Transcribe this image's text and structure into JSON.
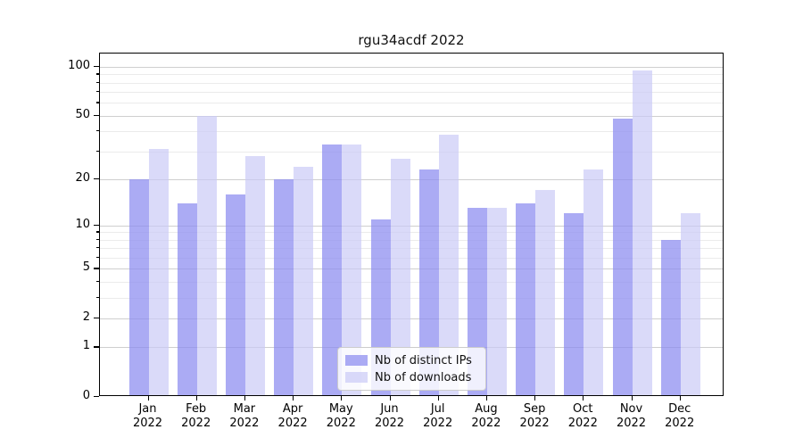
{
  "chart_data": {
    "type": "bar",
    "title": "rgu34acdf 2022",
    "categories": [
      "Jan",
      "Feb",
      "Mar",
      "Apr",
      "May",
      "Jun",
      "Jul",
      "Aug",
      "Sep",
      "Oct",
      "Nov",
      "Dec"
    ],
    "year_label": "2022",
    "series": [
      {
        "name": "Nb of distinct IPs",
        "color": "rgba(138,138,240,0.72)",
        "values": [
          20,
          14,
          16,
          20,
          33,
          11,
          23,
          13,
          14,
          12,
          48,
          8
        ]
      },
      {
        "name": "Nb of downloads",
        "color": "rgba(200,200,246,0.68)",
        "values": [
          31,
          50,
          28,
          24,
          33,
          27,
          38,
          13,
          17,
          23,
          95,
          12
        ]
      }
    ],
    "y_axis": {
      "scale": "log10(value+1)",
      "ticks": [
        100,
        50,
        20,
        10,
        5,
        2,
        1,
        0
      ],
      "minor_ticks": [
        90,
        80,
        70,
        60,
        40,
        30,
        9,
        8,
        7,
        6,
        4,
        3
      ],
      "range_top_value": 110
    },
    "legend": {
      "position": "bottom-center",
      "entries": [
        "Nb of distinct IPs",
        "Nb of downloads"
      ]
    },
    "grid": {
      "major_color": "#cfcfcf",
      "minor_color": "#ebebeb"
    }
  }
}
